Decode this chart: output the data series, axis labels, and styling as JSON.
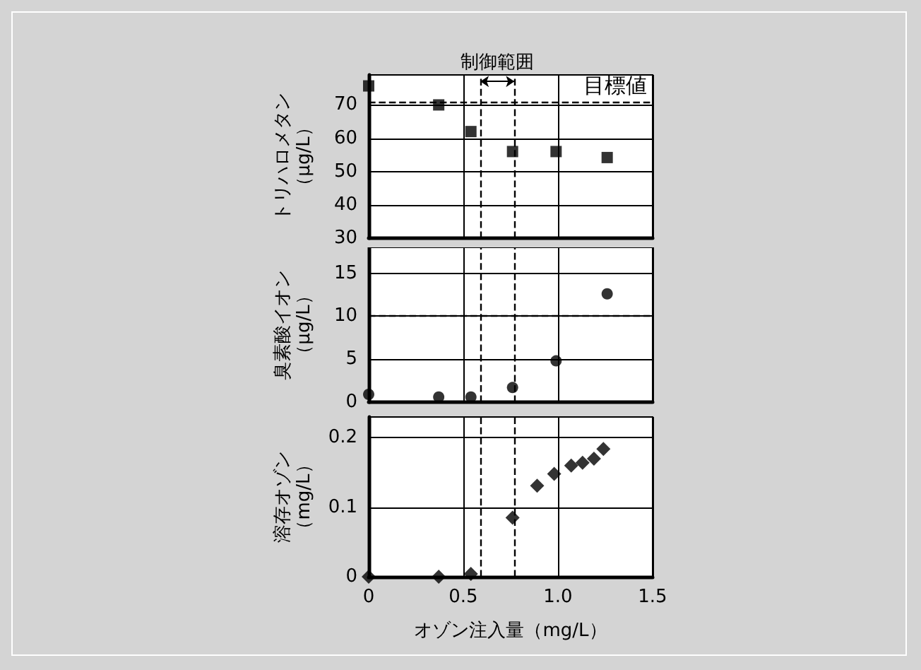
{
  "chart_data": [
    {
      "type": "scatter",
      "ylabel": "トリハロメタン（μg/L）",
      "annotations": [
        "制御範囲"
      ],
      "x": [
        0,
        0.37,
        0.54,
        0.76,
        0.99,
        1.26
      ],
      "values": [
        75.7,
        70,
        62,
        56,
        56,
        54.2
      ],
      "color": "#000000",
      "marker": "square",
      "xlim": [
        0,
        1.5
      ],
      "xticks": [
        0,
        0.5,
        1,
        1.5
      ],
      "ylim": [
        30,
        79
      ],
      "yticks": [
        30,
        40,
        50,
        60,
        70
      ],
      "grid": true,
      "tick_labels": "y",
      "ref_lines": [
        {
          "axis": "y",
          "value": 71,
          "label": "目標値",
          "line_style": "dashed"
        },
        {
          "axis": "x",
          "value": 0.59,
          "line_style": "dashed"
        },
        {
          "axis": "x",
          "value": 0.77,
          "line_style": "dashed"
        }
      ]
    },
    {
      "type": "scatter",
      "ylabel": "臭素酸イオン（μg/L）",
      "x": [
        0,
        0.37,
        0.54,
        0.76,
        0.99,
        1.26
      ],
      "values": [
        0.9,
        0.6,
        0.6,
        1.7,
        4.8,
        12.6
      ],
      "color": "#000000",
      "marker": "circle",
      "xlim": [
        0,
        1.5
      ],
      "xticks": [
        0,
        0.5,
        1,
        1.5
      ],
      "ylim": [
        0,
        18
      ],
      "yticks": [
        0,
        5,
        10,
        15
      ],
      "grid": true,
      "tick_labels": "y",
      "ref_lines": [
        {
          "axis": "y",
          "value": 10,
          "line_style": "dashed"
        },
        {
          "axis": "x",
          "value": 0.59,
          "line_style": "dashed"
        },
        {
          "axis": "x",
          "value": 0.77,
          "line_style": "dashed"
        }
      ]
    },
    {
      "type": "scatter",
      "ylabel": "溶存オゾン（mg/L）",
      "xlabel": "オゾン注入量（mg/L）",
      "x": [
        0,
        0.37,
        0.54,
        0.76,
        0.89,
        0.98,
        1.07,
        1.13,
        1.19,
        1.24
      ],
      "values": [
        0,
        0,
        0.004,
        0.085,
        0.131,
        0.148,
        0.16,
        0.164,
        0.17,
        0.184
      ],
      "color": "#000000",
      "marker": "diamond",
      "xlim": [
        0,
        1.5
      ],
      "xticks": [
        0,
        0.5,
        {
          "value": 1,
          "label": "1.0"
        },
        1.5
      ],
      "ylim": [
        0,
        0.23
      ],
      "yticks": [
        0,
        0.1,
        0.2
      ],
      "grid": true,
      "ref_lines": [
        {
          "axis": "x",
          "value": 0.59,
          "line_style": "dashed"
        },
        {
          "axis": "x",
          "value": 0.77,
          "line_style": "dashed"
        }
      ]
    }
  ]
}
